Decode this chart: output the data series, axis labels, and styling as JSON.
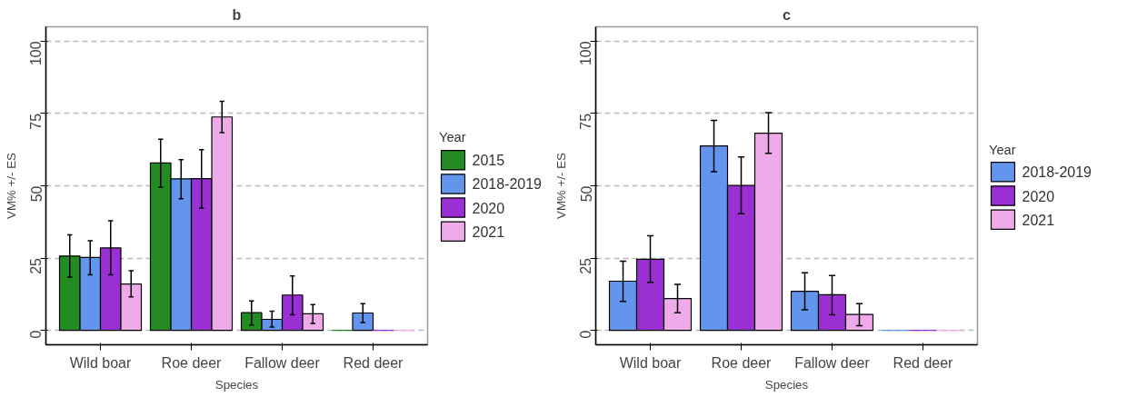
{
  "chart_data": [
    {
      "type": "bar",
      "title": "b",
      "xlabel": "Species",
      "ylabel": "VM% +/- ES",
      "legend_title": "Year",
      "legend": "right",
      "grid": "y",
      "categories": [
        "Wild boar",
        "Roe deer",
        "Fallow deer",
        "Red deer"
      ],
      "ylim": [
        -5,
        105
      ],
      "yticks": [
        0,
        25,
        50,
        75,
        100
      ],
      "series": [
        {
          "name": "2015",
          "color": "#228b22",
          "values": [
            25.7,
            57.9,
            6.1,
            0
          ],
          "errors": [
            [
              18.4,
              33
            ],
            [
              49.5,
              66.1
            ],
            [
              1.8,
              10.2
            ],
            null
          ]
        },
        {
          "name": "2018-2019",
          "color": "#6495ed",
          "values": [
            25.2,
            52.4,
            3.8,
            6
          ],
          "errors": [
            [
              19.2,
              31
            ],
            [
              45.5,
              59
            ],
            [
              1.1,
              6.6
            ],
            [
              2.7,
              9.2
            ]
          ]
        },
        {
          "name": "2020",
          "color": "#9a2fd4",
          "values": [
            28.5,
            52.5,
            12.2,
            0
          ],
          "errors": [
            [
              19.2,
              37.9
            ],
            [
              42.3,
              62.5
            ],
            [
              5.4,
              18.8
            ],
            null
          ]
        },
        {
          "name": "2021",
          "color": "#eeaae9",
          "values": [
            16,
            73.8,
            5.7,
            0
          ],
          "errors": [
            [
              11.6,
              20.6
            ],
            [
              68.4,
              79.2
            ],
            [
              2.4,
              8.9
            ],
            null
          ]
        }
      ]
    },
    {
      "type": "bar",
      "title": "c",
      "xlabel": "Species",
      "ylabel": "VM% +/- ES",
      "legend_title": "Year",
      "legend": "right",
      "grid": "y",
      "categories": [
        "Wild boar",
        "Roe deer",
        "Fallow deer",
        "Red deer"
      ],
      "ylim": [
        -5,
        105
      ],
      "yticks": [
        0,
        25,
        50,
        75,
        100
      ],
      "series": [
        {
          "name": "2018-2019",
          "color": "#6495ed",
          "values": [
            17,
            63.8,
            13.5,
            0
          ],
          "errors": [
            [
              10,
              23.9
            ],
            [
              54.9,
              72.6
            ],
            [
              7.1,
              19.9
            ],
            null
          ]
        },
        {
          "name": "2020",
          "color": "#9a2fd4",
          "values": [
            24.6,
            50.1,
            12.3,
            0
          ],
          "errors": [
            [
              16.6,
              32.7
            ],
            [
              40.3,
              60
            ],
            [
              5.4,
              19
            ],
            null
          ]
        },
        {
          "name": "2021",
          "color": "#eeaae9",
          "values": [
            11,
            68.2,
            5.5,
            0
          ],
          "errors": [
            [
              6.1,
              15.9
            ],
            [
              61.2,
              75.3
            ],
            [
              1.6,
              9.2
            ],
            null
          ]
        }
      ]
    }
  ]
}
